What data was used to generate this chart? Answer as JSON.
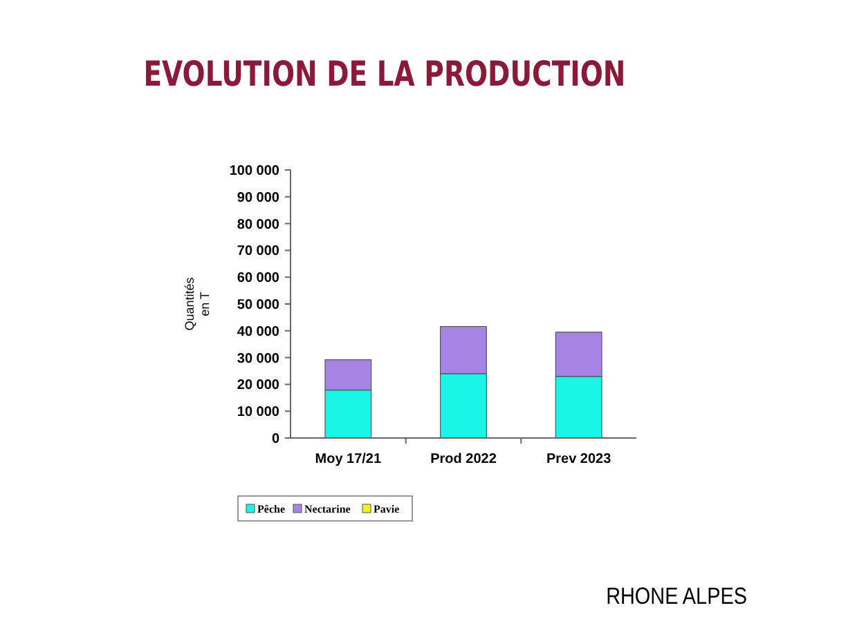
{
  "chart_data": {
    "type": "bar",
    "title": "EVOLUTION DE LA PRODUCTION",
    "ylabel": "Quantités en T",
    "categories": [
      "Moy 17/21",
      "Prod 2022",
      "Prev 2023"
    ],
    "stacked": true,
    "series": [
      {
        "name": "Pêche",
        "color": "#19f5e6",
        "values": [
          17900,
          24000,
          23000
        ]
      },
      {
        "name": "Nectarine",
        "color": "#a584e6",
        "values": [
          11300,
          17600,
          16500
        ]
      },
      {
        "name": "Pavie",
        "color": "#f2f21e",
        "values": [
          0,
          0,
          0
        ]
      }
    ],
    "ylim": [
      0,
      100000
    ],
    "yticks": [
      {
        "value": 0,
        "label": "0"
      },
      {
        "value": 10000,
        "label": "10 000"
      },
      {
        "value": 20000,
        "label": "20 000"
      },
      {
        "value": 30000,
        "label": "30 000"
      },
      {
        "value": 40000,
        "label": "40 000"
      },
      {
        "value": 50000,
        "label": "50 000"
      },
      {
        "value": 60000,
        "label": "60 000"
      },
      {
        "value": 70000,
        "label": "70 000"
      },
      {
        "value": 80000,
        "label": "80 000"
      },
      {
        "value": 90000,
        "label": "90 000"
      },
      {
        "value": 100000,
        "label": "100 000"
      }
    ],
    "grid": false,
    "legend": "bottom left",
    "annotations": [
      "RHONE ALPES"
    ]
  }
}
